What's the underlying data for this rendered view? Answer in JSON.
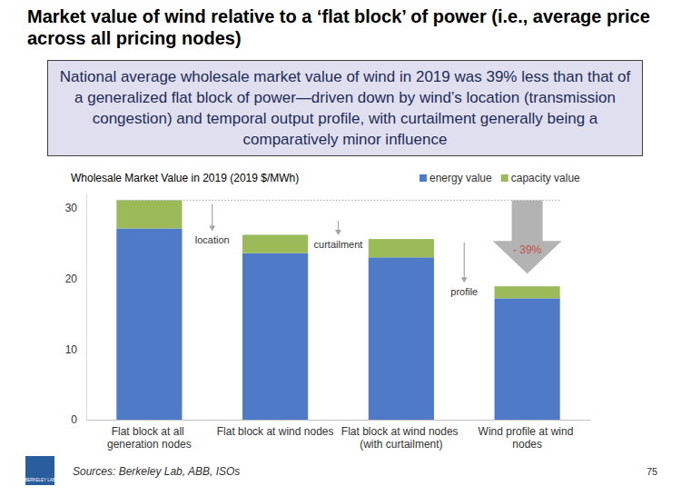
{
  "header": {
    "title": "Market value of wind relative to a ‘flat block’ of power (i.e., average price across all pricing nodes)",
    "summary": "National average wholesale market value of wind in 2019 was 39% less than that of a generalized flat block of power—driven down by wind’s location (transmission congestion) and temporal output profile, with curtailment generally being a comparatively minor influence"
  },
  "chart_data": {
    "type": "bar",
    "stacked": true,
    "title": "Wholesale Market Value in 2019 (2019 $/MWh)",
    "categories": [
      "Flat block at all generation nodes",
      "Flat block at wind nodes",
      "Flat block at wind nodes (with curtailment)",
      "Wind profile at wind nodes"
    ],
    "series": [
      {
        "name": "energy value",
        "color": "#4f7ac7",
        "values": [
          27.1,
          23.6,
          23.0,
          17.2
        ]
      },
      {
        "name": "capacity value",
        "color": "#9bbb59",
        "values": [
          4.0,
          2.6,
          2.6,
          1.7
        ]
      }
    ],
    "ylim": [
      0,
      32
    ],
    "yticks": [
      0,
      10,
      20,
      30
    ],
    "grid": false,
    "legend": "top-right",
    "annotations": [
      {
        "text": "location"
      },
      {
        "text": "curtailment"
      },
      {
        "text": "profile"
      },
      {
        "text": "- 39%"
      }
    ]
  },
  "footer": {
    "source": "Sources: Berkeley Lab, ABB, ISOs",
    "page": 75,
    "logo": "BERKELEY LAB"
  }
}
